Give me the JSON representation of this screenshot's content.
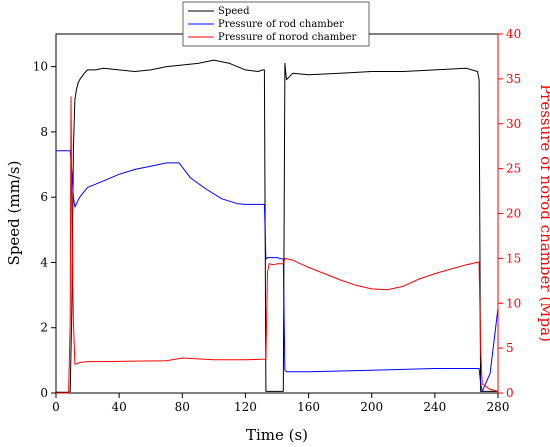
{
  "chart_data": {
    "type": "line",
    "xlabel": "Time (s)",
    "ylabel_left": "Speed (mm/s)",
    "ylabel_right": "Pressure of norod chamber (Mpa)",
    "xlim": [
      0,
      280
    ],
    "ylim_left": [
      0,
      11
    ],
    "ylim_right": [
      0,
      40
    ],
    "x_ticks": [
      0,
      40,
      80,
      120,
      160,
      200,
      240,
      280
    ],
    "y_left_ticks": [
      0,
      2,
      4,
      6,
      8,
      10
    ],
    "y_right_ticks": [
      0,
      5,
      10,
      15,
      20,
      25,
      30,
      35,
      40
    ],
    "grid": false,
    "legend_position": "top",
    "colors": {
      "speed": "#000000",
      "rod": "#0000ff",
      "norod": "#ff0000",
      "right_axis": "#ff0000"
    },
    "series": [
      {
        "name": "Speed",
        "axis": "left",
        "x": [
          0,
          8,
          9,
          10,
          11,
          12,
          13,
          14,
          15,
          18,
          20,
          25,
          30,
          40,
          50,
          60,
          70,
          80,
          90,
          100,
          110,
          120,
          128,
          131,
          132,
          133,
          134,
          140,
          143,
          144,
          145,
          146,
          150,
          160,
          180,
          200,
          220,
          240,
          260,
          267,
          268,
          269,
          270,
          275,
          280
        ],
        "y": [
          0.02,
          0.02,
          0.05,
          2.5,
          7.5,
          9.0,
          9.3,
          9.5,
          9.6,
          9.8,
          9.9,
          9.9,
          9.95,
          9.9,
          9.85,
          9.9,
          10.0,
          10.05,
          10.1,
          10.2,
          10.1,
          9.9,
          9.85,
          9.9,
          9.9,
          0.05,
          0.05,
          0.05,
          0.05,
          0.05,
          10.1,
          9.6,
          9.8,
          9.75,
          9.8,
          9.85,
          9.85,
          9.9,
          9.95,
          9.85,
          9.6,
          0.05,
          0.05,
          0.05,
          0.05
        ]
      },
      {
        "name": "Pressure of rod chamber",
        "axis": "left",
        "x": [
          0,
          8,
          9,
          10,
          11,
          12,
          13,
          15,
          20,
          30,
          40,
          50,
          60,
          70,
          78,
          85,
          95,
          105,
          115,
          120,
          132,
          133,
          134,
          140,
          144,
          145,
          146,
          160,
          200,
          240,
          268,
          269,
          270,
          275,
          280
        ],
        "y": [
          7.42,
          7.42,
          7.42,
          6.8,
          6.0,
          5.7,
          5.8,
          6.0,
          6.3,
          6.5,
          6.7,
          6.85,
          6.95,
          7.05,
          7.05,
          6.6,
          6.25,
          5.95,
          5.8,
          5.78,
          5.78,
          4.1,
          4.15,
          4.15,
          4.1,
          0.7,
          0.65,
          0.65,
          0.7,
          0.75,
          0.75,
          0.3,
          0.05,
          0.6,
          2.6
        ]
      },
      {
        "name": "Pressure of norod chamber",
        "axis": "right",
        "x": [
          0,
          8,
          9,
          9.5,
          10,
          11,
          12,
          15,
          20,
          30,
          50,
          70,
          80,
          90,
          100,
          110,
          120,
          130,
          132,
          133,
          134,
          135,
          138,
          140,
          144,
          145,
          150,
          160,
          170,
          180,
          190,
          200,
          210,
          220,
          230,
          240,
          250,
          260,
          268,
          269,
          270,
          275,
          280
        ],
        "y": [
          0,
          0,
          8,
          33,
          20,
          8,
          3.2,
          3.4,
          3.5,
          3.5,
          3.55,
          3.6,
          3.9,
          3.8,
          3.7,
          3.7,
          3.7,
          3.75,
          3.75,
          3.8,
          13.5,
          14.4,
          14.3,
          14.4,
          14.4,
          15.0,
          14.8,
          14.0,
          13.3,
          12.6,
          12.0,
          11.6,
          11.5,
          11.9,
          12.7,
          13.3,
          13.8,
          14.3,
          14.6,
          5,
          1,
          0.4,
          0.2
        ]
      }
    ]
  }
}
